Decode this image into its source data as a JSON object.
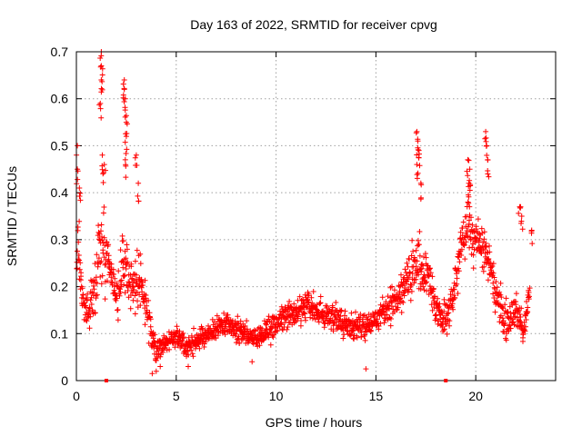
{
  "chart_data": {
    "type": "scatter",
    "title": "Day 163 of 2022, SRMTID for receiver cpvg",
    "xlabel": "GPS time / hours",
    "ylabel": "SRMTID / TECUs",
    "xlim": [
      0,
      24
    ],
    "ylim": [
      0,
      0.7
    ],
    "xticks": [
      0,
      5,
      10,
      15,
      20
    ],
    "xtick_labels": [
      "0",
      "5",
      "10",
      "15",
      "20"
    ],
    "yticks": [
      0,
      0.1,
      0.2,
      0.3,
      0.4,
      0.5,
      0.6,
      0.7
    ],
    "ytick_labels": [
      "0",
      "0.1",
      "0.2",
      "0.3",
      "0.4",
      "0.5",
      "0.6",
      "0.7"
    ],
    "grid": true,
    "marker": "plus",
    "color": "#ff0000",
    "x_axis_markers": [
      1.5,
      18.5
    ],
    "series": [
      {
        "name": "SRMTID",
        "envelope_x": [
          0.0,
          0.1,
          0.3,
          0.6,
          1.0,
          1.3,
          1.6,
          2.0,
          2.4,
          2.8,
          3.2,
          3.6,
          4.0,
          4.5,
          5.0,
          5.5,
          6.0,
          6.5,
          7.0,
          7.5,
          8.0,
          8.5,
          9.0,
          9.5,
          10.0,
          10.5,
          11.0,
          11.5,
          12.0,
          12.5,
          13.0,
          13.5,
          14.0,
          14.5,
          15.0,
          15.5,
          16.0,
          16.5,
          17.0,
          17.3,
          17.6,
          18.0,
          18.5,
          19.0,
          19.3,
          19.6,
          20.0,
          20.4,
          20.8,
          21.2,
          21.6,
          22.0,
          22.4,
          22.7
        ],
        "envelope_center": [
          0.2,
          0.3,
          0.18,
          0.14,
          0.22,
          0.3,
          0.25,
          0.17,
          0.28,
          0.2,
          0.22,
          0.13,
          0.06,
          0.08,
          0.1,
          0.07,
          0.08,
          0.1,
          0.11,
          0.12,
          0.11,
          0.1,
          0.09,
          0.1,
          0.12,
          0.14,
          0.15,
          0.16,
          0.15,
          0.14,
          0.14,
          0.12,
          0.11,
          0.12,
          0.13,
          0.15,
          0.17,
          0.2,
          0.25,
          0.22,
          0.24,
          0.15,
          0.12,
          0.2,
          0.3,
          0.34,
          0.3,
          0.28,
          0.22,
          0.16,
          0.12,
          0.15,
          0.1,
          0.2
        ],
        "envelope_spread": [
          0.1,
          0.15,
          0.08,
          0.06,
          0.12,
          0.18,
          0.1,
          0.08,
          0.14,
          0.1,
          0.1,
          0.06,
          0.04,
          0.04,
          0.04,
          0.04,
          0.04,
          0.04,
          0.04,
          0.04,
          0.05,
          0.04,
          0.04,
          0.05,
          0.05,
          0.05,
          0.05,
          0.05,
          0.05,
          0.05,
          0.05,
          0.05,
          0.05,
          0.05,
          0.05,
          0.06,
          0.06,
          0.06,
          0.12,
          0.1,
          0.08,
          0.06,
          0.06,
          0.08,
          0.1,
          0.1,
          0.1,
          0.1,
          0.08,
          0.07,
          0.06,
          0.07,
          0.05,
          0.07
        ],
        "peaks": [
          {
            "x": 0.05,
            "y": 0.5
          },
          {
            "x": 0.05,
            "y": 0.45
          },
          {
            "x": 0.15,
            "y": 0.41
          },
          {
            "x": 1.25,
            "y": 0.7
          },
          {
            "x": 1.25,
            "y": 0.67
          },
          {
            "x": 1.25,
            "y": 0.64
          },
          {
            "x": 1.2,
            "y": 0.59
          },
          {
            "x": 1.3,
            "y": 0.48
          },
          {
            "x": 1.4,
            "y": 0.46
          },
          {
            "x": 2.4,
            "y": 0.64
          },
          {
            "x": 2.4,
            "y": 0.62
          },
          {
            "x": 2.45,
            "y": 0.6
          },
          {
            "x": 2.5,
            "y": 0.55
          },
          {
            "x": 2.5,
            "y": 0.52
          },
          {
            "x": 2.45,
            "y": 0.47
          },
          {
            "x": 3.0,
            "y": 0.48
          },
          {
            "x": 3.1,
            "y": 0.42
          },
          {
            "x": 17.05,
            "y": 0.53
          },
          {
            "x": 17.1,
            "y": 0.51
          },
          {
            "x": 17.15,
            "y": 0.49
          },
          {
            "x": 17.05,
            "y": 0.46
          },
          {
            "x": 17.25,
            "y": 0.42
          },
          {
            "x": 19.6,
            "y": 0.47
          },
          {
            "x": 19.7,
            "y": 0.45
          },
          {
            "x": 19.65,
            "y": 0.42
          },
          {
            "x": 20.5,
            "y": 0.53
          },
          {
            "x": 20.55,
            "y": 0.5
          },
          {
            "x": 20.6,
            "y": 0.47
          },
          {
            "x": 22.2,
            "y": 0.37
          },
          {
            "x": 22.3,
            "y": 0.35
          },
          {
            "x": 22.8,
            "y": 0.32
          }
        ],
        "troughs": [
          {
            "x": 3.8,
            "y": 0.015
          },
          {
            "x": 4.0,
            "y": 0.02
          },
          {
            "x": 4.2,
            "y": 0.03
          },
          {
            "x": 5.6,
            "y": 0.03
          },
          {
            "x": 8.8,
            "y": 0.04
          },
          {
            "x": 14.5,
            "y": 0.025
          }
        ]
      }
    ]
  }
}
